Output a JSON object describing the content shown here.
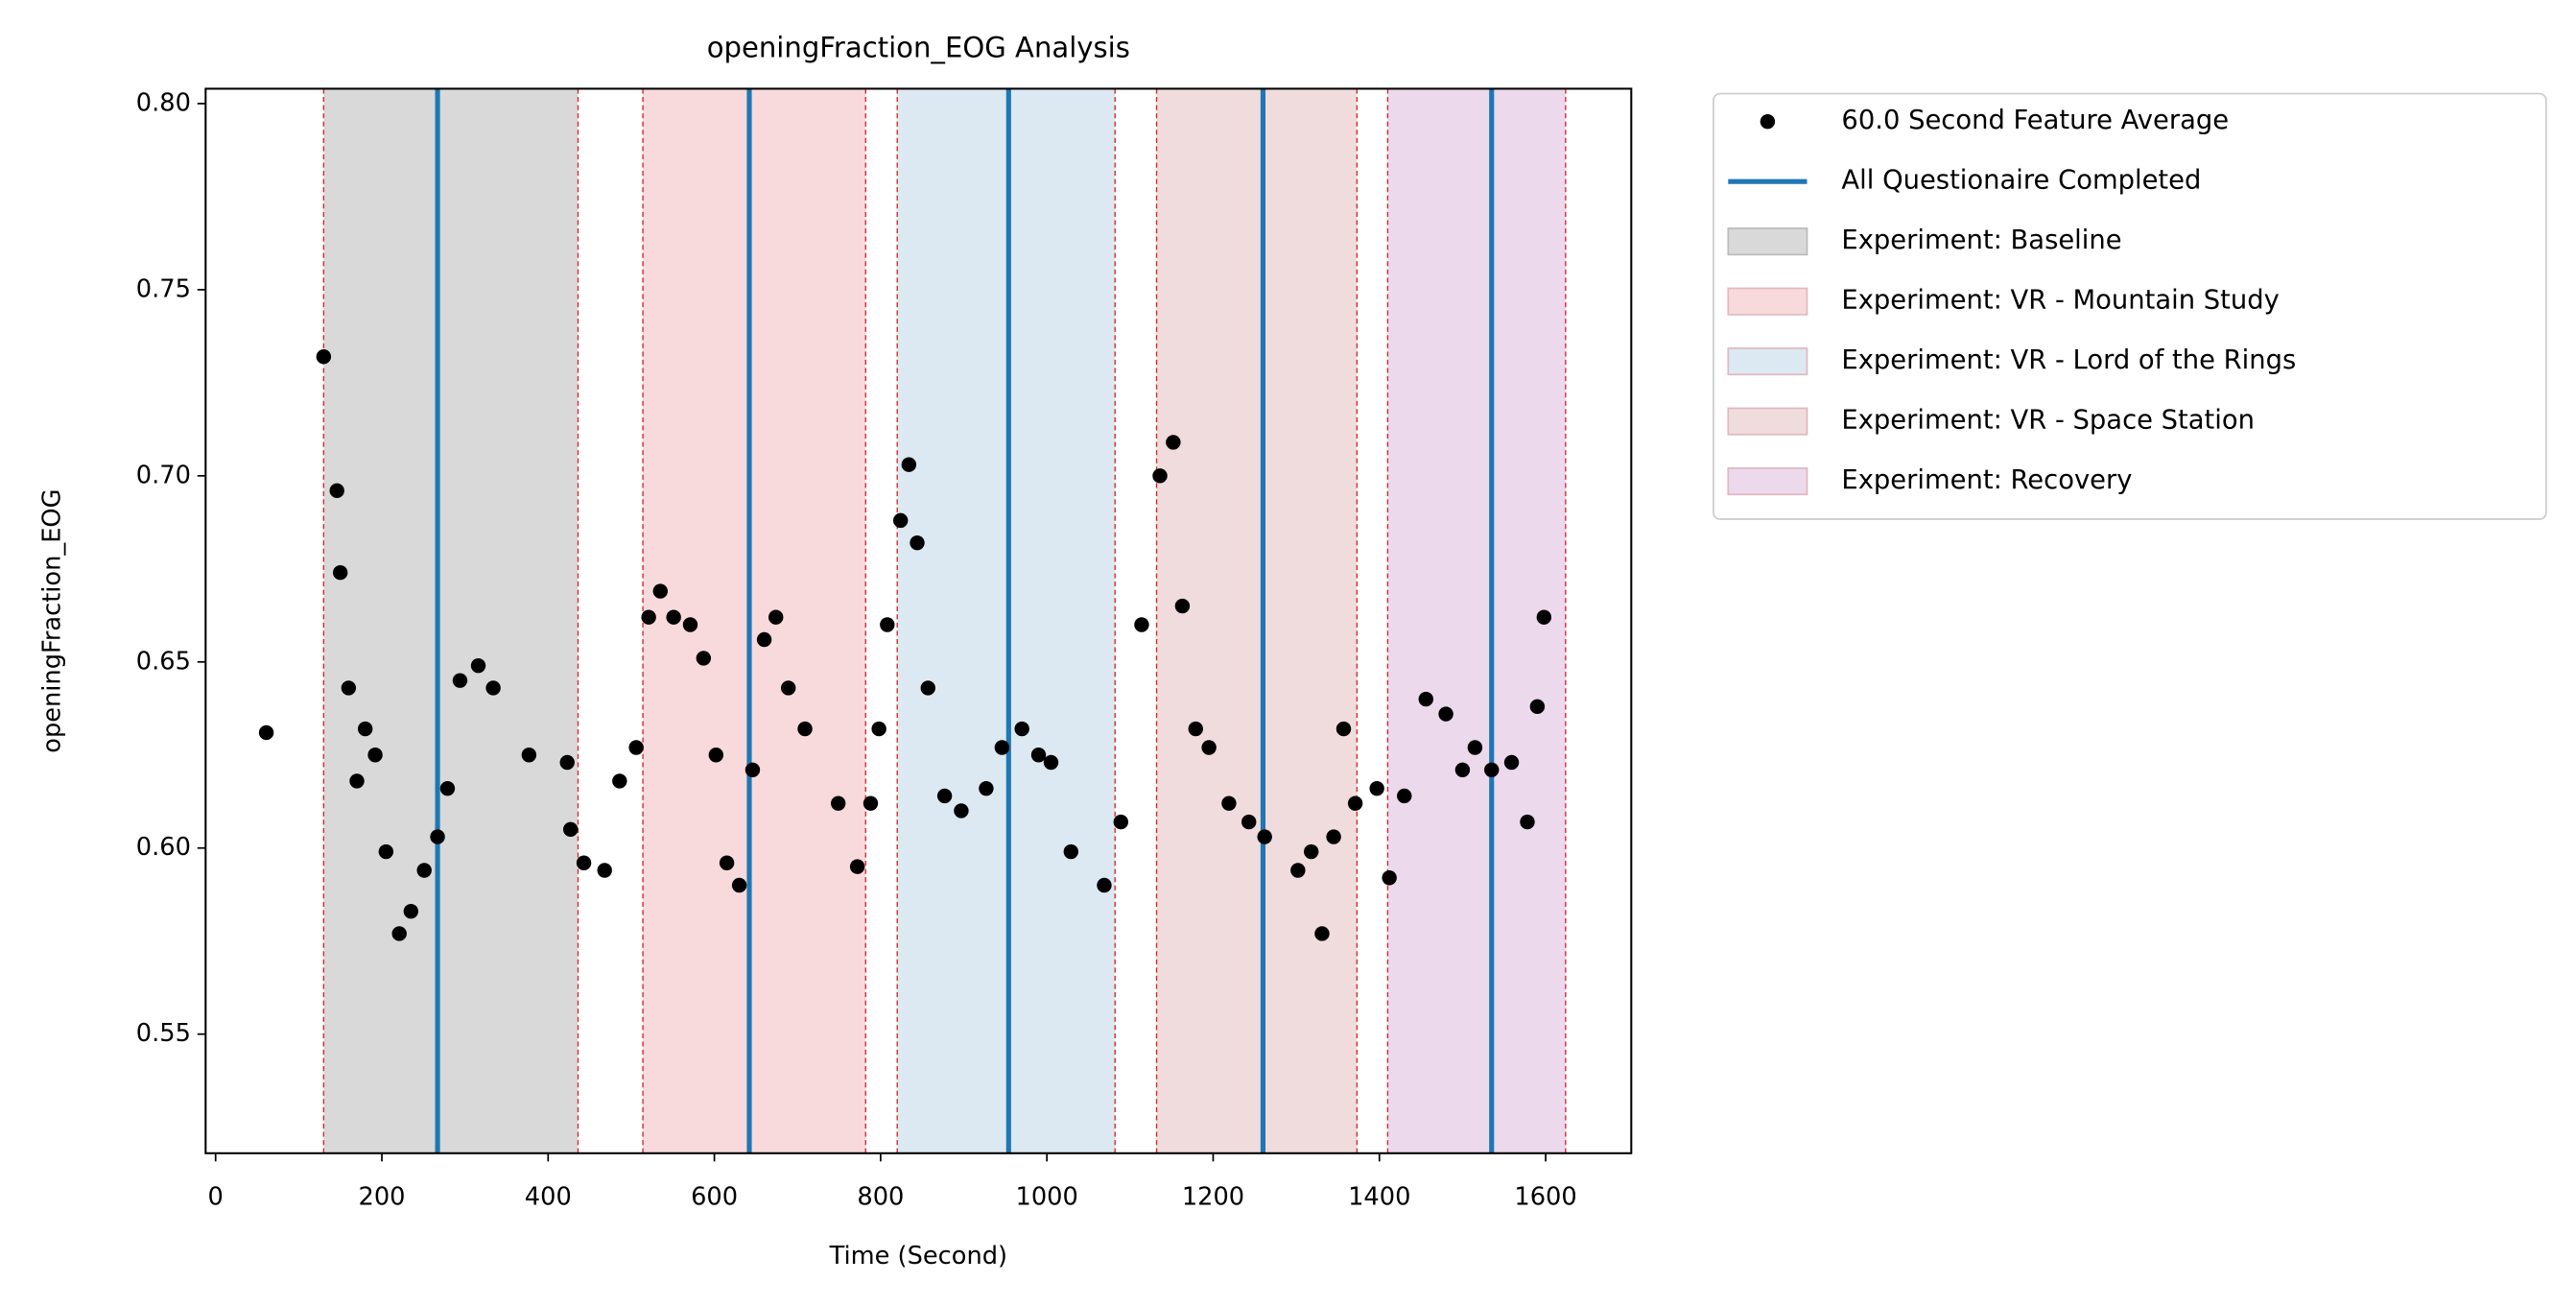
{
  "chart_data": {
    "type": "scatter",
    "title": "openingFraction_EOG Analysis",
    "xlabel": "Time (Second)",
    "ylabel": "openingFraction_EOG",
    "xlim": [
      -12,
      1703
    ],
    "ylim": [
      0.518,
      0.804
    ],
    "xticks": [
      0,
      200,
      400,
      600,
      800,
      1000,
      1200,
      1400,
      1600
    ],
    "yticks": [
      0.55,
      {
        "value": 0.6,
        "label": "0.60"
      },
      0.65,
      {
        "value": 0.7,
        "label": "0.70"
      },
      0.75,
      {
        "value": 0.8,
        "label": "0.80"
      }
    ],
    "series": [
      {
        "name": "60.0 Second Feature Average",
        "color": "#000000",
        "x": [
          61,
          130,
          146,
          150,
          160,
          170,
          180,
          192,
          205,
          221,
          235,
          251,
          267,
          279,
          294,
          316,
          334,
          377,
          423,
          427,
          443,
          468,
          486,
          506,
          521,
          535,
          551,
          571,
          587,
          602,
          615,
          630,
          646,
          660,
          674,
          689,
          709,
          749,
          772,
          788,
          798,
          808,
          824,
          834,
          844,
          857,
          877,
          897,
          927,
          946,
          970,
          990,
          1005,
          1029,
          1069,
          1089,
          1114,
          1136,
          1152,
          1163,
          1179,
          1195,
          1219,
          1243,
          1262,
          1302,
          1318,
          1331,
          1345,
          1357,
          1371,
          1397,
          1412,
          1430,
          1456,
          1480,
          1500,
          1515,
          1535,
          1559,
          1578,
          1590,
          1598
        ],
        "values": [
          0.631,
          0.732,
          0.696,
          0.674,
          0.643,
          0.618,
          0.632,
          0.625,
          0.599,
          0.577,
          0.583,
          0.594,
          0.603,
          0.616,
          0.645,
          0.649,
          0.643,
          0.625,
          0.623,
          0.605,
          0.596,
          0.594,
          0.618,
          0.627,
          0.662,
          0.669,
          0.662,
          0.66,
          0.651,
          0.625,
          0.596,
          0.59,
          0.621,
          0.656,
          0.662,
          0.643,
          0.632,
          0.612,
          0.595,
          0.612,
          0.632,
          0.66,
          0.688,
          0.703,
          0.682,
          0.643,
          0.614,
          0.61,
          0.616,
          0.627,
          0.632,
          0.625,
          0.623,
          0.599,
          0.59,
          0.607,
          0.66,
          0.7,
          0.709,
          0.665,
          0.632,
          0.627,
          0.612,
          0.607,
          0.603,
          0.594,
          0.599,
          0.577,
          0.603,
          0.632,
          0.612,
          0.616,
          0.592,
          0.614,
          0.64,
          0.636,
          0.621,
          0.627,
          0.621,
          0.623,
          0.607,
          0.638,
          0.662
        ]
      }
    ],
    "vlines": {
      "name": "All Questionaire Completed",
      "color": "#1f77b4",
      "values": [
        267,
        642,
        954,
        1260,
        1535
      ]
    },
    "regions": [
      {
        "name": "Experiment: Baseline",
        "start": 130,
        "end": 436,
        "color": "#d9d9d9"
      },
      {
        "name": "Experiment: VR - Mountain Study",
        "start": 514,
        "end": 782,
        "color": "#f8d9dc"
      },
      {
        "name": "Experiment: VR - Lord of the Rings",
        "start": 820,
        "end": 1082,
        "color": "#dce9f2"
      },
      {
        "name": "Experiment: VR - Space Station",
        "start": 1132,
        "end": 1373,
        "color": "#f0dcdc"
      },
      {
        "name": "Experiment: Recovery",
        "start": 1410,
        "end": 1624,
        "color": "#ecd9ec"
      }
    ]
  }
}
